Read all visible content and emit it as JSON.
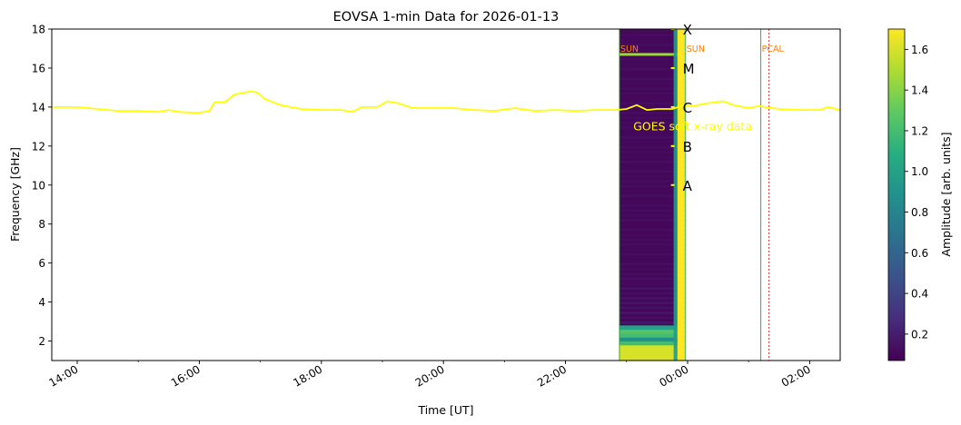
{
  "chart_data": {
    "type": "heatmap",
    "title": "EOVSA 1-min Data for 2026-01-13",
    "xlabel": "Time [UT]",
    "ylabel": "Frequency [GHz]",
    "xlim": [
      "13:35",
      "02:30"
    ],
    "ylim": [
      1,
      18
    ],
    "x_ticks": [
      "14:00",
      "16:00",
      "18:00",
      "20:00",
      "22:00",
      "00:00",
      "02:00"
    ],
    "y_ticks": [
      2,
      4,
      6,
      8,
      10,
      12,
      14,
      16,
      18
    ],
    "colorbar": {
      "label": "Amplitude [arb. units]",
      "range": [
        0.07,
        1.7
      ],
      "ticks": [
        0.2,
        0.4,
        0.6,
        0.8,
        1.0,
        1.2,
        1.4,
        1.6
      ],
      "tick_labels": [
        "0.2",
        "0.4",
        "0.6",
        "0.8",
        "1.0",
        "1.2",
        "1.4",
        "1.6"
      ],
      "colormap": "viridis"
    },
    "spectrogram": {
      "time_range": [
        "22:53",
        "23:57"
      ],
      "typical_amplitude": 0.1,
      "bright_low_freq_band_GHz": [
        1.0,
        2.8
      ],
      "bright_band_amplitude": 1.6,
      "bright_line_GHz": 16.7
    },
    "goes_curve": {
      "label": "GOES soft x-ray data",
      "color": "#ffff00",
      "class_labels": [
        {
          "label": "X",
          "y": 18
        },
        {
          "label": "M",
          "y": 16
        },
        {
          "label": "C",
          "y": 14
        },
        {
          "label": "B",
          "y": 12
        },
        {
          "label": "A",
          "y": 10
        }
      ],
      "points": [
        [
          "13:35",
          14.0
        ],
        [
          "14:00",
          14.0
        ],
        [
          "14:20",
          13.9
        ],
        [
          "14:40",
          13.8
        ],
        [
          "15:00",
          13.8
        ],
        [
          "15:20",
          13.75
        ],
        [
          "15:30",
          13.85
        ],
        [
          "15:40",
          13.75
        ],
        [
          "16:00",
          13.7
        ],
        [
          "16:10",
          13.8
        ],
        [
          "16:15",
          14.25
        ],
        [
          "16:25",
          14.25
        ],
        [
          "16:35",
          14.65
        ],
        [
          "16:50",
          14.8
        ],
        [
          "16:57",
          14.75
        ],
        [
          "17:05",
          14.4
        ],
        [
          "17:20",
          14.1
        ],
        [
          "17:40",
          13.9
        ],
        [
          "18:00",
          13.85
        ],
        [
          "18:20",
          13.85
        ],
        [
          "18:30",
          13.75
        ],
        [
          "18:40",
          14.0
        ],
        [
          "18:55",
          14.0
        ],
        [
          "19:05",
          14.3
        ],
        [
          "19:15",
          14.2
        ],
        [
          "19:30",
          13.95
        ],
        [
          "19:50",
          13.95
        ],
        [
          "20:10",
          13.95
        ],
        [
          "20:30",
          13.85
        ],
        [
          "20:50",
          13.8
        ],
        [
          "21:10",
          13.95
        ],
        [
          "21:30",
          13.8
        ],
        [
          "21:50",
          13.85
        ],
        [
          "22:10",
          13.8
        ],
        [
          "22:30",
          13.85
        ],
        [
          "22:50",
          13.85
        ],
        [
          "23:00",
          13.9
        ],
        [
          "23:10",
          14.1
        ],
        [
          "23:20",
          13.85
        ],
        [
          "23:30",
          13.9
        ],
        [
          "23:45",
          13.9
        ],
        [
          "23:57",
          14.1
        ],
        [
          "00:05",
          14.05
        ],
        [
          "00:20",
          14.2
        ],
        [
          "00:35",
          14.3
        ],
        [
          "00:45",
          14.1
        ],
        [
          "01:00",
          13.95
        ],
        [
          "01:10",
          14.05
        ],
        [
          "01:30",
          13.9
        ],
        [
          "01:50",
          13.85
        ],
        [
          "02:10",
          13.85
        ],
        [
          "02:18",
          14.0
        ],
        [
          "02:30",
          13.85
        ]
      ]
    },
    "event_lines": [
      {
        "time": "22:53",
        "label": "SUN",
        "label_color": "#ff7f0e",
        "line_color": "#2ca02c",
        "style": "solid"
      },
      {
        "time": "23:58",
        "label": "SUN",
        "label_color": "#ff7f0e",
        "line_color": "#2ca02c",
        "style": "solid"
      },
      {
        "time": "01:12",
        "label": "PCAL",
        "label_color": "#ff7f0e",
        "line_color": "#2ca02c",
        "style": "solid"
      },
      {
        "time": "01:20",
        "label": "",
        "line_color": "#d62728",
        "style": "dashed"
      }
    ]
  }
}
